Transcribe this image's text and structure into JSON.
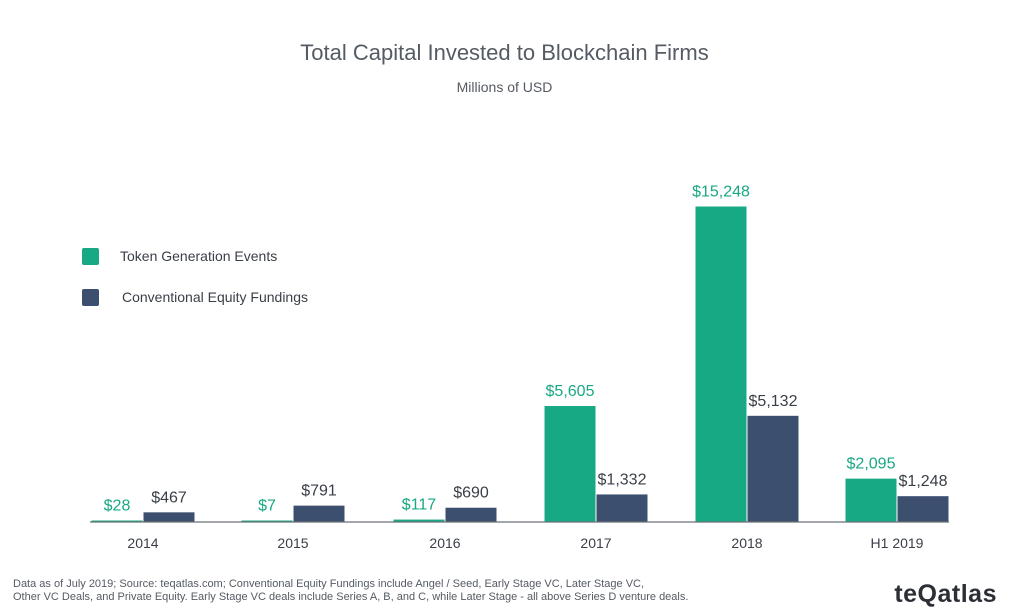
{
  "chart_data": {
    "type": "bar",
    "title": "Total Capital Invested to Blockchain Firms",
    "subtitle": "Millions of USD",
    "xlabel": "",
    "ylabel": "",
    "categories": [
      "2014",
      "2015",
      "2016",
      "2017",
      "2018",
      "H1 2019"
    ],
    "series": [
      {
        "name": "Token Generation Events",
        "color": "#17a884",
        "values": [
          28,
          7,
          117,
          5605,
          15248,
          2095
        ],
        "labels": [
          "$28",
          "$7",
          "$117",
          "$5,605",
          "$15,248",
          "$2,095"
        ]
      },
      {
        "name": "Conventional Equity Fundings",
        "color": "#3c4f6e",
        "values": [
          467,
          791,
          690,
          1332,
          5132,
          1248
        ],
        "labels": [
          "$467",
          "$791",
          "$690",
          "$1,332",
          "$5,132",
          "$1,248"
        ]
      }
    ],
    "ylim": [
      0,
      16000
    ],
    "grid": false,
    "legend_position": "left"
  },
  "footnote": {
    "line1": "Data as of July 2019; Source: teqatlas.com; Conventional Equity Fundings include Angel / Seed, Early Stage VC, Later Stage VC,",
    "line2": "Other VC Deals, and Private Equity. Early Stage VC deals include Series A, B, and C, while Later Stage - all above Series D venture deals."
  },
  "brand": {
    "logo_text": "teQatlas"
  }
}
